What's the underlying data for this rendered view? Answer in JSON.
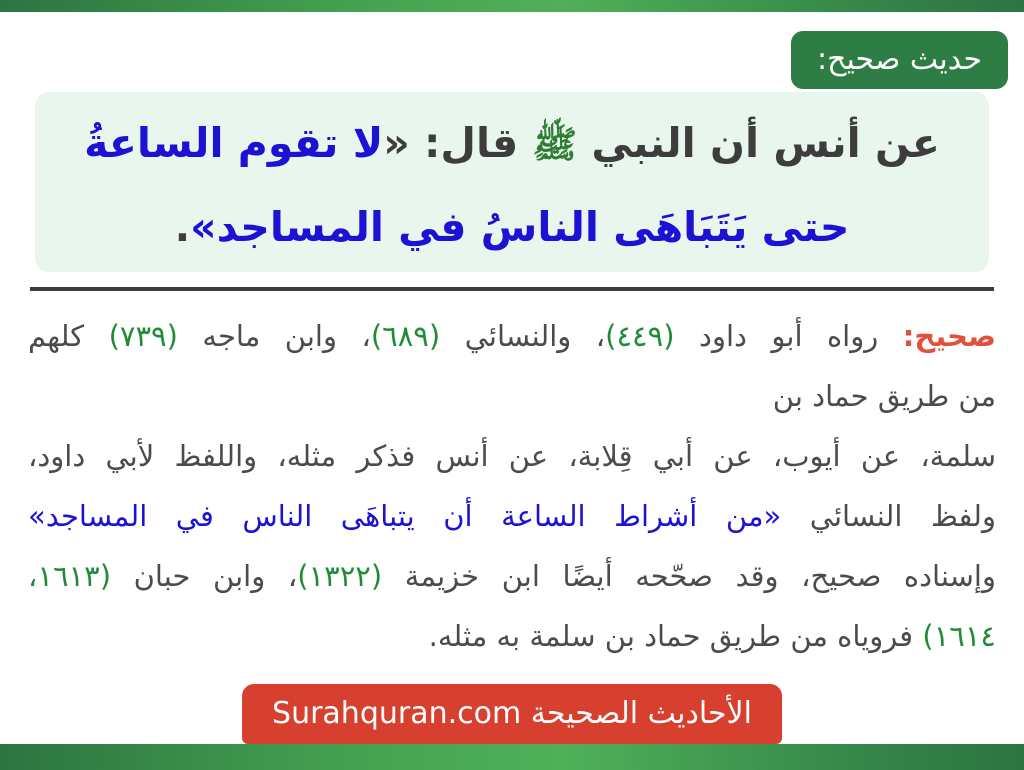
{
  "theme": {
    "top_bottom_bar_gradient": [
      "#2d7441",
      "#4fb059"
    ],
    "header_badge_green": "#2e7d45",
    "hadith_box_bg": "#e9f6ee",
    "hadith_dark_text": "#3d3d3d",
    "hadith_blue_text": "#1c12d4",
    "salawat_green": "#2e7d32",
    "body_text_color": "#4b4b4b",
    "number_green": "#1f8c35",
    "sahih_red": "#e2503c",
    "footer_badge_red": "#d7402f",
    "divider_color": "#3c3c3c"
  },
  "header": {
    "badge_label": "حديث صحيح:"
  },
  "hadith": {
    "lines": [
      {
        "segs": [
          {
            "t": "عن أنس أن النبي ",
            "c": "dark"
          },
          {
            "t": "ﷺ",
            "c": "sala"
          },
          {
            "t": " قال: «",
            "c": "dark"
          },
          {
            "t": "لا تقوم الساعةُ",
            "c": "blue"
          }
        ]
      },
      {
        "segs": [
          {
            "t": "حتى يَتَبَاهَى الناسُ في المساجد»",
            "c": "blue"
          },
          {
            "t": ".",
            "c": "dark"
          }
        ]
      }
    ]
  },
  "body": {
    "lines": [
      {
        "align": "just",
        "segs": [
          {
            "t": "صحيح:",
            "c": "red"
          },
          {
            "t": " رواه أبو داود ",
            "c": "dark"
          },
          {
            "t": "(٤٤٩)",
            "c": "green"
          },
          {
            "t": "، والنسائي ",
            "c": "dark"
          },
          {
            "t": "(٦٨٩)",
            "c": "green"
          },
          {
            "t": "، وابن ماجه ",
            "c": "dark"
          },
          {
            "t": "(٧٣٩)",
            "c": "green"
          },
          {
            "t": " كلهم",
            "c": "dark"
          }
        ]
      },
      {
        "align": "right",
        "segs": [
          {
            "t": "من طريق حماد بن",
            "c": "dark"
          }
        ]
      },
      {
        "align": "just",
        "segs": [
          {
            "t": "سلمة، عن أيوب، عن أبي قِلابة، عن أنس فذكر مثله، واللفظ لأبي داود،",
            "c": "dark"
          }
        ]
      },
      {
        "align": "just",
        "segs": [
          {
            "t": "ولفظ النسائي ",
            "c": "dark"
          },
          {
            "t": "«من أشراط الساعة أن يتباهَى الناس في المساجد»",
            "c": "blue"
          }
        ]
      },
      {
        "align": "just",
        "segs": [
          {
            "t": "وإسناده صحيح، وقد صحّحه أيضًا ابن خزيمة ",
            "c": "dark"
          },
          {
            "t": "(١٣٢٢)",
            "c": "green"
          },
          {
            "t": "، وابن حبان ",
            "c": "dark"
          },
          {
            "t": "(١٦١٣،",
            "c": "green"
          }
        ]
      },
      {
        "align": "right",
        "segs": [
          {
            "t": "١٦١٤)",
            "c": "green"
          },
          {
            "t": " فروياه من طريق حماد بن سلمة به مثله.",
            "c": "dark"
          }
        ]
      }
    ]
  },
  "footer": {
    "brand_ar": "الأحاديث الصحيحة",
    "brand_domain": "Surahquran.com"
  }
}
